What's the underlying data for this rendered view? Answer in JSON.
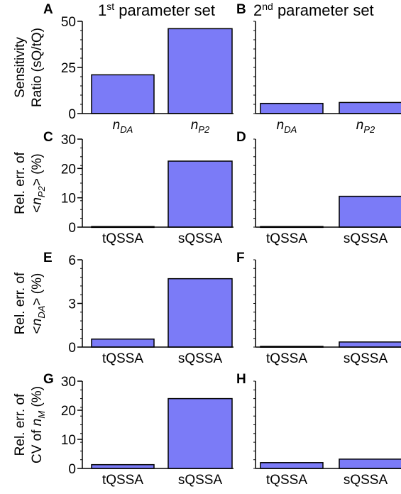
{
  "columns": [
    {
      "title": "1",
      "sup": "st",
      "rest": " parameter set"
    },
    {
      "title": "2",
      "sup": "nd",
      "rest": " parameter set"
    }
  ],
  "colors": {
    "bar": "#7b7bf7",
    "stroke": "#000000"
  },
  "rows": [
    {
      "ylabel_line1": "Sensitivity",
      "ylabel_line2": "Ratio (sQ/tQ)",
      "ylabel_type": "plain"
    },
    {
      "ylabel_line1": "Rel. err. of",
      "ylabel_line2": "<nP2> (%)",
      "ylabel_type": "nP2"
    },
    {
      "ylabel_line1": "Rel. err. of",
      "ylabel_line2": "<nDA> (%)",
      "ylabel_type": "nDA"
    },
    {
      "ylabel_line1": "Rel. err. of",
      "ylabel_line2": "CV of nM (%)",
      "ylabel_type": "nM"
    }
  ],
  "chart_data": [
    {
      "panel": "A",
      "type": "bar",
      "categories": [
        "n_DA",
        "n_P2"
      ],
      "values": [
        21,
        46
      ],
      "ylim": [
        0,
        50
      ],
      "yticks": [
        0,
        25,
        50
      ]
    },
    {
      "panel": "B",
      "type": "bar",
      "categories": [
        "n_DA",
        "n_P2"
      ],
      "values": [
        5.5,
        6
      ],
      "ylim": [
        0,
        50
      ],
      "yticks": []
    },
    {
      "panel": "C",
      "type": "bar",
      "categories": [
        "tQSSA",
        "sQSSA"
      ],
      "values": [
        0.2,
        22.5
      ],
      "ylim": [
        0,
        30
      ],
      "yticks": [
        0,
        10,
        20,
        30
      ]
    },
    {
      "panel": "D",
      "type": "bar",
      "categories": [
        "tQSSA",
        "sQSSA"
      ],
      "values": [
        0.2,
        10.5
      ],
      "ylim": [
        0,
        30
      ],
      "yticks": []
    },
    {
      "panel": "E",
      "type": "bar",
      "categories": [
        "tQSSA",
        "sQSSA"
      ],
      "values": [
        0.55,
        4.7
      ],
      "ylim": [
        0,
        6
      ],
      "yticks": [
        0,
        3,
        6
      ]
    },
    {
      "panel": "F",
      "type": "bar",
      "categories": [
        "tQSSA",
        "sQSSA"
      ],
      "values": [
        0.05,
        0.35
      ],
      "ylim": [
        0,
        6
      ],
      "yticks": []
    },
    {
      "panel": "G",
      "type": "bar",
      "categories": [
        "tQSSA",
        "sQSSA"
      ],
      "values": [
        1.3,
        24
      ],
      "ylim": [
        0,
        30
      ],
      "yticks": [
        0,
        10,
        20,
        30
      ]
    },
    {
      "panel": "H",
      "type": "bar",
      "categories": [
        "tQSSA",
        "sQSSA"
      ],
      "values": [
        2,
        3.2
      ],
      "ylim": [
        0,
        30
      ],
      "yticks": []
    }
  ]
}
